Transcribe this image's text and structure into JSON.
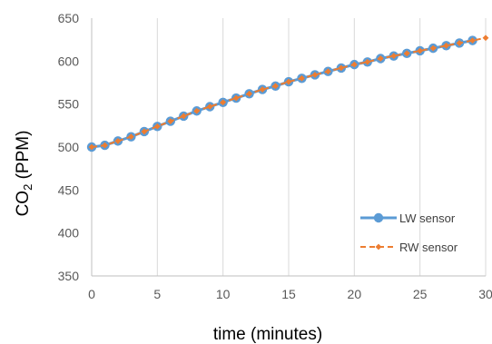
{
  "chart_data": {
    "type": "line",
    "xlabel": "time (minutes)",
    "ylabel_main": "CO",
    "ylabel_sub": "2",
    "ylabel_rest": " (PPM)",
    "xlim": [
      0,
      30
    ],
    "ylim": [
      350,
      650
    ],
    "xticks": [
      "0",
      "5",
      "10",
      "15",
      "20",
      "25",
      "30"
    ],
    "yticks": [
      "650",
      "600",
      "550",
      "500",
      "450",
      "400",
      "350"
    ],
    "grid": "vertical",
    "legend_position": "bottom-right",
    "series": [
      {
        "name": "LW sensor",
        "color": "#5B9BD5",
        "marker": "circle",
        "line": "solid",
        "x": [
          0,
          1,
          2,
          3,
          4,
          5,
          6,
          7,
          8,
          9,
          10,
          11,
          12,
          13,
          14,
          15,
          16,
          17,
          18,
          19,
          20,
          21,
          22,
          23,
          24,
          25,
          26,
          27,
          28,
          29
        ],
        "y": [
          500,
          502,
          507,
          512,
          518,
          524,
          530,
          536,
          542,
          547,
          552,
          557,
          562,
          567,
          571,
          576,
          580,
          584,
          588,
          592,
          596,
          599,
          603,
          606,
          609,
          612,
          615,
          618,
          621,
          624
        ]
      },
      {
        "name": "RW sensor",
        "color": "#ED7D31",
        "marker": "diamond",
        "line": "dashed",
        "x": [
          0,
          1,
          2,
          3,
          4,
          5,
          6,
          7,
          8,
          9,
          10,
          11,
          12,
          13,
          14,
          15,
          16,
          17,
          18,
          19,
          20,
          21,
          22,
          23,
          24,
          25,
          26,
          27,
          28,
          29,
          30
        ],
        "y": [
          500,
          502,
          507,
          512,
          518,
          524,
          530,
          536,
          542,
          547,
          552,
          557,
          562,
          567,
          571,
          576,
          580,
          584,
          588,
          592,
          596,
          599,
          603,
          606,
          609,
          612,
          615,
          618,
          621,
          624,
          627
        ]
      }
    ]
  }
}
